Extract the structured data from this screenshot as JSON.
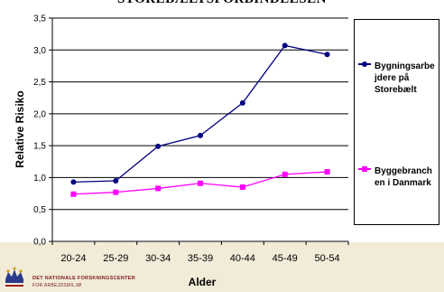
{
  "chart_data": {
    "type": "line",
    "title": "STOREBÆLTSFORBINDELSEN",
    "xlabel": "Alder",
    "ylabel": "Relative Risiko",
    "categories": [
      "20-24",
      "25-29",
      "30-34",
      "35-39",
      "40-44",
      "45-49",
      "50-54"
    ],
    "yticks": [
      "0,0",
      "0,5",
      "1,0",
      "1,5",
      "2,0",
      "2,5",
      "3,0",
      "3,5"
    ],
    "ylim": [
      0,
      3.5
    ],
    "grid": true,
    "legend_position": "right",
    "series": [
      {
        "name": "Bygningsarbejdere på Storebælt",
        "legend_lines": [
          "Bygningsarbe",
          "jdere på",
          "Storebælt"
        ],
        "color": "#000080",
        "marker": "circle",
        "values": [
          0.93,
          0.95,
          1.49,
          1.66,
          2.17,
          3.07,
          2.93
        ]
      },
      {
        "name": "Byggebranchen i Danmark",
        "legend_lines": [
          "Byggebranch",
          "en i Danmark"
        ],
        "color": "#ff00ff",
        "marker": "square",
        "values": [
          0.74,
          0.77,
          0.83,
          0.91,
          0.85,
          1.05,
          1.09
        ]
      }
    ]
  },
  "footer": {
    "org_name": "DET NATIONALE FORSKNINGSCENTER",
    "org_sub": "FOR ARBEJDSMILJØ"
  }
}
